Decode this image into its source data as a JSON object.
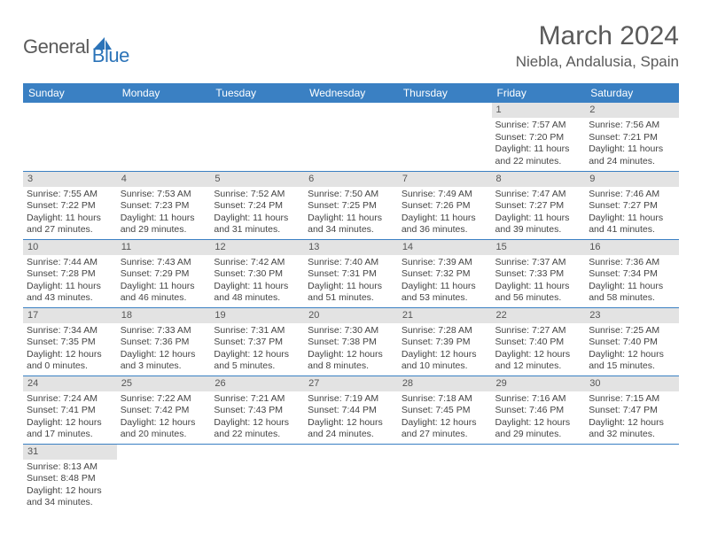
{
  "brand": {
    "part1": "General",
    "part2": "Blue",
    "logo_color": "#2b73b8"
  },
  "title": "March 2024",
  "location": "Niebla, Andalusia, Spain",
  "colors": {
    "header_bg": "#3a80c3",
    "header_fg": "#ffffff",
    "daynum_bg": "#e3e3e3",
    "rule": "#3a80c3",
    "text": "#444444",
    "title_color": "#5a5a5a"
  },
  "weekdays": [
    "Sunday",
    "Monday",
    "Tuesday",
    "Wednesday",
    "Thursday",
    "Friday",
    "Saturday"
  ],
  "weeks": [
    [
      null,
      null,
      null,
      null,
      null,
      {
        "n": "1",
        "sr": "7:57 AM",
        "ss": "7:20 PM",
        "dl": "11 hours and 22 minutes."
      },
      {
        "n": "2",
        "sr": "7:56 AM",
        "ss": "7:21 PM",
        "dl": "11 hours and 24 minutes."
      }
    ],
    [
      {
        "n": "3",
        "sr": "7:55 AM",
        "ss": "7:22 PM",
        "dl": "11 hours and 27 minutes."
      },
      {
        "n": "4",
        "sr": "7:53 AM",
        "ss": "7:23 PM",
        "dl": "11 hours and 29 minutes."
      },
      {
        "n": "5",
        "sr": "7:52 AM",
        "ss": "7:24 PM",
        "dl": "11 hours and 31 minutes."
      },
      {
        "n": "6",
        "sr": "7:50 AM",
        "ss": "7:25 PM",
        "dl": "11 hours and 34 minutes."
      },
      {
        "n": "7",
        "sr": "7:49 AM",
        "ss": "7:26 PM",
        "dl": "11 hours and 36 minutes."
      },
      {
        "n": "8",
        "sr": "7:47 AM",
        "ss": "7:27 PM",
        "dl": "11 hours and 39 minutes."
      },
      {
        "n": "9",
        "sr": "7:46 AM",
        "ss": "7:27 PM",
        "dl": "11 hours and 41 minutes."
      }
    ],
    [
      {
        "n": "10",
        "sr": "7:44 AM",
        "ss": "7:28 PM",
        "dl": "11 hours and 43 minutes."
      },
      {
        "n": "11",
        "sr": "7:43 AM",
        "ss": "7:29 PM",
        "dl": "11 hours and 46 minutes."
      },
      {
        "n": "12",
        "sr": "7:42 AM",
        "ss": "7:30 PM",
        "dl": "11 hours and 48 minutes."
      },
      {
        "n": "13",
        "sr": "7:40 AM",
        "ss": "7:31 PM",
        "dl": "11 hours and 51 minutes."
      },
      {
        "n": "14",
        "sr": "7:39 AM",
        "ss": "7:32 PM",
        "dl": "11 hours and 53 minutes."
      },
      {
        "n": "15",
        "sr": "7:37 AM",
        "ss": "7:33 PM",
        "dl": "11 hours and 56 minutes."
      },
      {
        "n": "16",
        "sr": "7:36 AM",
        "ss": "7:34 PM",
        "dl": "11 hours and 58 minutes."
      }
    ],
    [
      {
        "n": "17",
        "sr": "7:34 AM",
        "ss": "7:35 PM",
        "dl": "12 hours and 0 minutes."
      },
      {
        "n": "18",
        "sr": "7:33 AM",
        "ss": "7:36 PM",
        "dl": "12 hours and 3 minutes."
      },
      {
        "n": "19",
        "sr": "7:31 AM",
        "ss": "7:37 PM",
        "dl": "12 hours and 5 minutes."
      },
      {
        "n": "20",
        "sr": "7:30 AM",
        "ss": "7:38 PM",
        "dl": "12 hours and 8 minutes."
      },
      {
        "n": "21",
        "sr": "7:28 AM",
        "ss": "7:39 PM",
        "dl": "12 hours and 10 minutes."
      },
      {
        "n": "22",
        "sr": "7:27 AM",
        "ss": "7:40 PM",
        "dl": "12 hours and 12 minutes."
      },
      {
        "n": "23",
        "sr": "7:25 AM",
        "ss": "7:40 PM",
        "dl": "12 hours and 15 minutes."
      }
    ],
    [
      {
        "n": "24",
        "sr": "7:24 AM",
        "ss": "7:41 PM",
        "dl": "12 hours and 17 minutes."
      },
      {
        "n": "25",
        "sr": "7:22 AM",
        "ss": "7:42 PM",
        "dl": "12 hours and 20 minutes."
      },
      {
        "n": "26",
        "sr": "7:21 AM",
        "ss": "7:43 PM",
        "dl": "12 hours and 22 minutes."
      },
      {
        "n": "27",
        "sr": "7:19 AM",
        "ss": "7:44 PM",
        "dl": "12 hours and 24 minutes."
      },
      {
        "n": "28",
        "sr": "7:18 AM",
        "ss": "7:45 PM",
        "dl": "12 hours and 27 minutes."
      },
      {
        "n": "29",
        "sr": "7:16 AM",
        "ss": "7:46 PM",
        "dl": "12 hours and 29 minutes."
      },
      {
        "n": "30",
        "sr": "7:15 AM",
        "ss": "7:47 PM",
        "dl": "12 hours and 32 minutes."
      }
    ],
    [
      {
        "n": "31",
        "sr": "8:13 AM",
        "ss": "8:48 PM",
        "dl": "12 hours and 34 minutes."
      },
      null,
      null,
      null,
      null,
      null,
      null
    ]
  ],
  "labels": {
    "sunrise": "Sunrise:",
    "sunset": "Sunset:",
    "daylight": "Daylight:"
  }
}
